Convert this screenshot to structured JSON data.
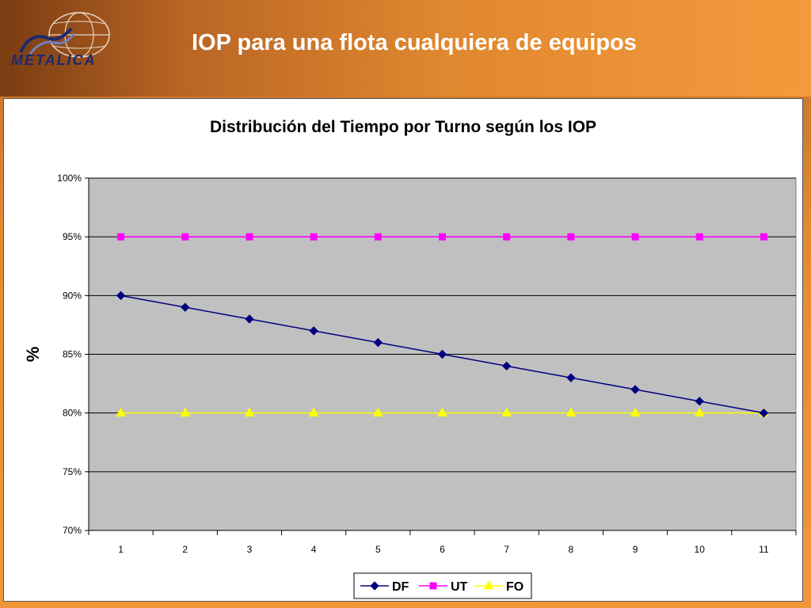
{
  "header": {
    "title": "IOP para una flota cualquiera de equipos",
    "logo_text": "METALICA"
  },
  "colors": {
    "DF": "#000080",
    "UT": "#ff00ff",
    "FO": "#ffff00",
    "plot_bg": "#c0c0c0"
  },
  "chart_data": {
    "type": "line",
    "title": "Distribución del Tiempo por Turno según los IOP",
    "xlabel": "",
    "ylabel": "%",
    "categories": [
      "1",
      "2",
      "3",
      "4",
      "5",
      "6",
      "7",
      "8",
      "9",
      "10",
      "11"
    ],
    "ylim": [
      0.7,
      1.0
    ],
    "yticks": [
      "70%",
      "75%",
      "80%",
      "85%",
      "90%",
      "95%",
      "100%"
    ],
    "grid": true,
    "legend": "bottom",
    "series": [
      {
        "name": "DF",
        "marker": "diamond",
        "values": [
          0.9,
          0.89,
          0.88,
          0.87,
          0.86,
          0.85,
          0.84,
          0.83,
          0.82,
          0.81,
          0.8
        ]
      },
      {
        "name": "UT",
        "marker": "square",
        "values": [
          0.95,
          0.95,
          0.95,
          0.95,
          0.95,
          0.95,
          0.95,
          0.95,
          0.95,
          0.95,
          0.95
        ]
      },
      {
        "name": "FO",
        "marker": "triangle",
        "values": [
          0.8,
          0.8,
          0.8,
          0.8,
          0.8,
          0.8,
          0.8,
          0.8,
          0.8,
          0.8,
          0.8
        ]
      }
    ]
  }
}
